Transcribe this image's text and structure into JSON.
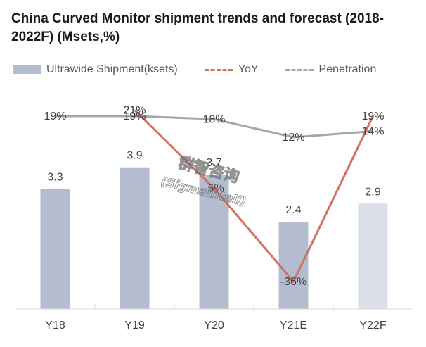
{
  "chart_data": {
    "type": "bar",
    "title": "China Curved Monitor shipment trends and forecast (2018-2022F) (Msets,%)",
    "categories": [
      "Y18",
      "Y19",
      "Y20",
      "Y21E",
      "Y22F"
    ],
    "series": [
      {
        "name": "Ultrawide Shipment(ksets)",
        "type": "bar",
        "values": [
          3.3,
          3.9,
          3.7,
          2.4,
          2.9
        ],
        "labels": [
          "3.3",
          "3.9",
          "3.7",
          "2.4",
          "2.9"
        ],
        "colors": [
          "#b4bccf",
          "#b4bccf",
          "#b4bccf",
          "#b4bccf",
          "#dadfe9"
        ]
      },
      {
        "name": "YoY",
        "type": "line",
        "color": "#d2705f",
        "values": [
          null,
          21,
          -5,
          -36,
          19
        ],
        "labels": [
          "",
          "21%",
          "-5%",
          "-36%",
          "19%"
        ]
      },
      {
        "name": "Penetration",
        "type": "line",
        "color": "#a6a6a6",
        "values": [
          19,
          19,
          18,
          12,
          14
        ],
        "labels": [
          "19%",
          "19%",
          "18%",
          "12%",
          "14%"
        ]
      }
    ],
    "bar_ylim": [
      0,
      5.6
    ],
    "line_ylim": [
      -50,
      30
    ],
    "xlabel": "",
    "ylabel": "",
    "grid": false,
    "legend_position": "top"
  },
  "watermark": {
    "chinese": "群智咨询",
    "english": "(Sigmaintell)"
  }
}
